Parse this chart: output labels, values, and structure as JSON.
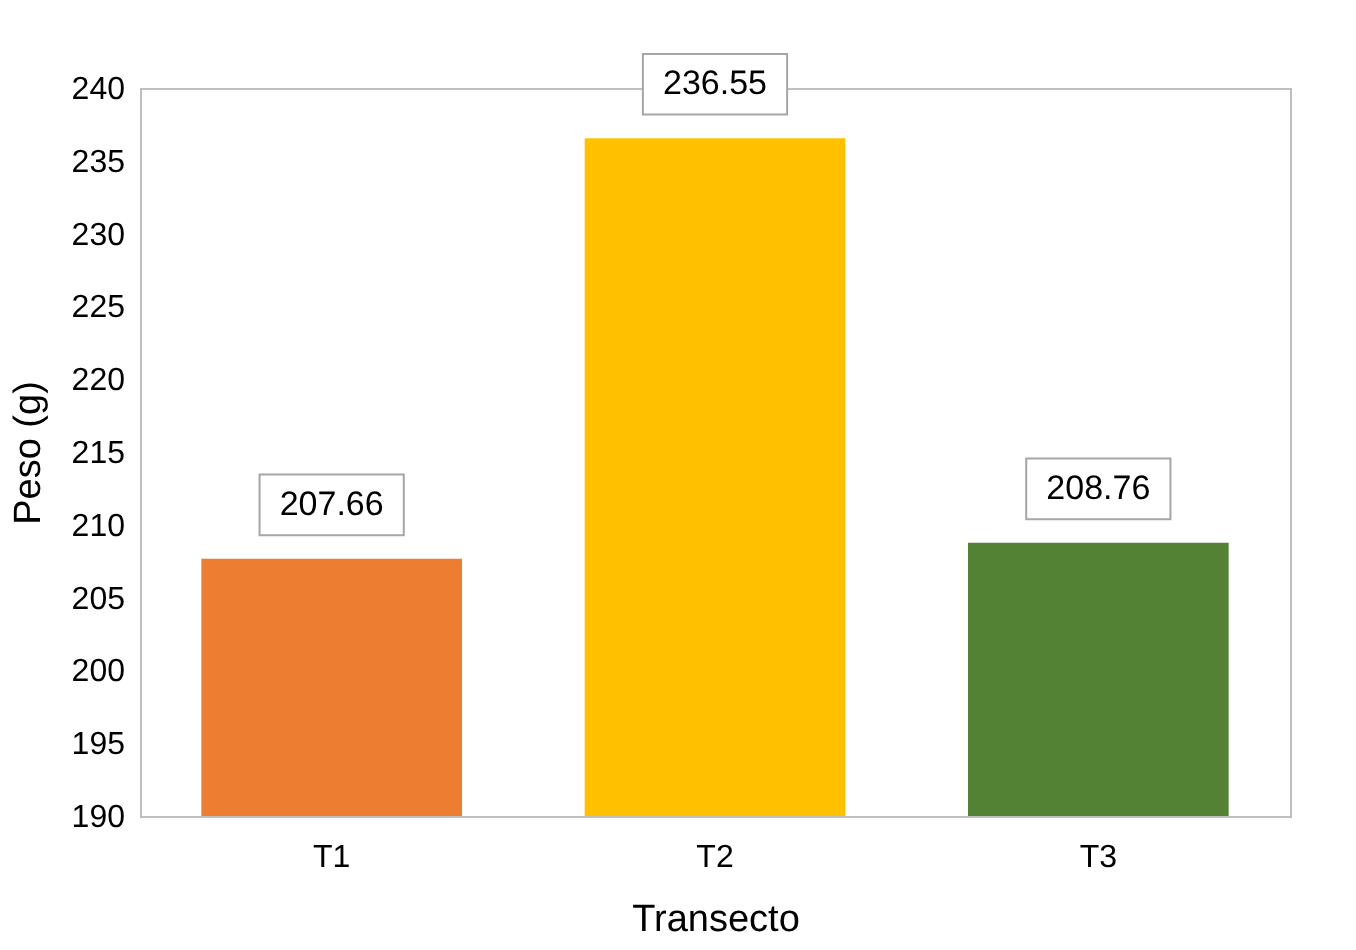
{
  "chart_data": {
    "type": "bar",
    "xlabel": "Transecto",
    "ylabel": "Peso (g)",
    "categories": [
      "T1",
      "T2",
      "T3"
    ],
    "values": [
      207.66,
      236.55,
      208.76
    ],
    "colors": [
      "#ed7d31",
      "#ffc000",
      "#548235"
    ],
    "ylim": [
      190,
      240
    ],
    "yticks": [
      190,
      195,
      200,
      205,
      210,
      215,
      220,
      225,
      230,
      235,
      240
    ],
    "data_labels": true
  }
}
